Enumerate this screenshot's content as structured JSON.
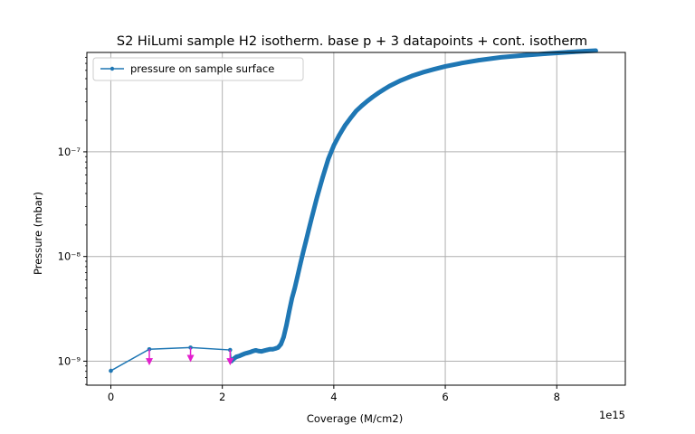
{
  "chart_data": {
    "type": "line",
    "title": "S2 HiLumi sample H2 isotherm. base p + 3 datapoints + cont. isotherm",
    "xlabel": "Coverage (M/cm2)",
    "ylabel": "Pressure (mbar)",
    "x_offset_label": "1e15",
    "x_scale_factor": 1000000000000000.0,
    "xlim": [
      -0.43,
      9.23
    ],
    "ylim": [
      5.9e-10,
      8.9e-07
    ],
    "yscale": "log",
    "grid": true,
    "legend_position": "upper-left",
    "x_ticks": [
      0,
      2,
      4,
      6,
      8
    ],
    "x_tick_labels": [
      "0",
      "2",
      "4",
      "6",
      "8"
    ],
    "y_ticks": [
      1e-09,
      1e-08,
      1e-07
    ],
    "y_tick_labels": [
      "10⁻⁹",
      "10⁻⁸",
      "10⁻⁷"
    ],
    "series": [
      {
        "name": "pressure on sample surface",
        "color": "#1f77b4",
        "marker": "dot",
        "x": [
          0,
          0.69,
          1.43,
          2.14,
          2.16,
          2.2,
          2.25,
          2.3,
          2.35,
          2.4,
          2.45,
          2.5,
          2.55,
          2.6,
          2.65,
          2.7,
          2.75,
          2.8,
          2.85,
          2.9,
          2.95,
          3.0,
          3.05,
          3.1,
          3.15,
          3.2,
          3.25,
          3.3,
          3.35,
          3.4,
          3.45,
          3.5,
          3.55,
          3.6,
          3.7,
          3.8,
          3.9,
          4.0,
          4.1,
          4.2,
          4.3,
          4.4,
          4.5,
          4.6,
          4.7,
          4.8,
          4.9,
          5.0,
          5.2,
          5.4,
          5.6,
          5.8,
          6.0,
          6.3,
          6.6,
          7.0,
          7.4,
          7.8,
          8.2,
          8.5,
          8.7
        ],
        "y": [
          8.1e-10,
          1.3e-09,
          1.35e-09,
          1.28e-09,
          1e-09,
          1.05e-09,
          1.1e-09,
          1.12e-09,
          1.15e-09,
          1.18e-09,
          1.2e-09,
          1.22e-09,
          1.25e-09,
          1.27e-09,
          1.25e-09,
          1.24e-09,
          1.26e-09,
          1.28e-09,
          1.3e-09,
          1.3e-09,
          1.32e-09,
          1.35e-09,
          1.45e-09,
          1.7e-09,
          2.2e-09,
          3e-09,
          4e-09,
          5e-09,
          6.5e-09,
          8.5e-09,
          1.1e-08,
          1.4e-08,
          1.8e-08,
          2.3e-08,
          3.7e-08,
          5.7e-08,
          8.5e-08,
          1.15e-07,
          1.45e-07,
          1.78e-07,
          2.1e-07,
          2.45e-07,
          2.75e-07,
          3.05e-07,
          3.35e-07,
          3.65e-07,
          3.95e-07,
          4.25e-07,
          4.8e-07,
          5.3e-07,
          5.75e-07,
          6.15e-07,
          6.55e-07,
          7.05e-07,
          7.5e-07,
          8e-07,
          8.35e-07,
          8.65e-07,
          8.95e-07,
          9.15e-07,
          9.25e-07
        ]
      }
    ],
    "annotations": [
      {
        "type": "arrow",
        "color": "#e31fce",
        "x": 0.69,
        "y_from": 1.3e-09,
        "y_to": 9.3e-10
      },
      {
        "type": "arrow",
        "color": "#e31fce",
        "x": 1.43,
        "y_from": 1.35e-09,
        "y_to": 1e-09
      },
      {
        "type": "arrow",
        "color": "#e31fce",
        "x": 2.14,
        "y_from": 1.28e-09,
        "y_to": 9.3e-10
      }
    ]
  }
}
